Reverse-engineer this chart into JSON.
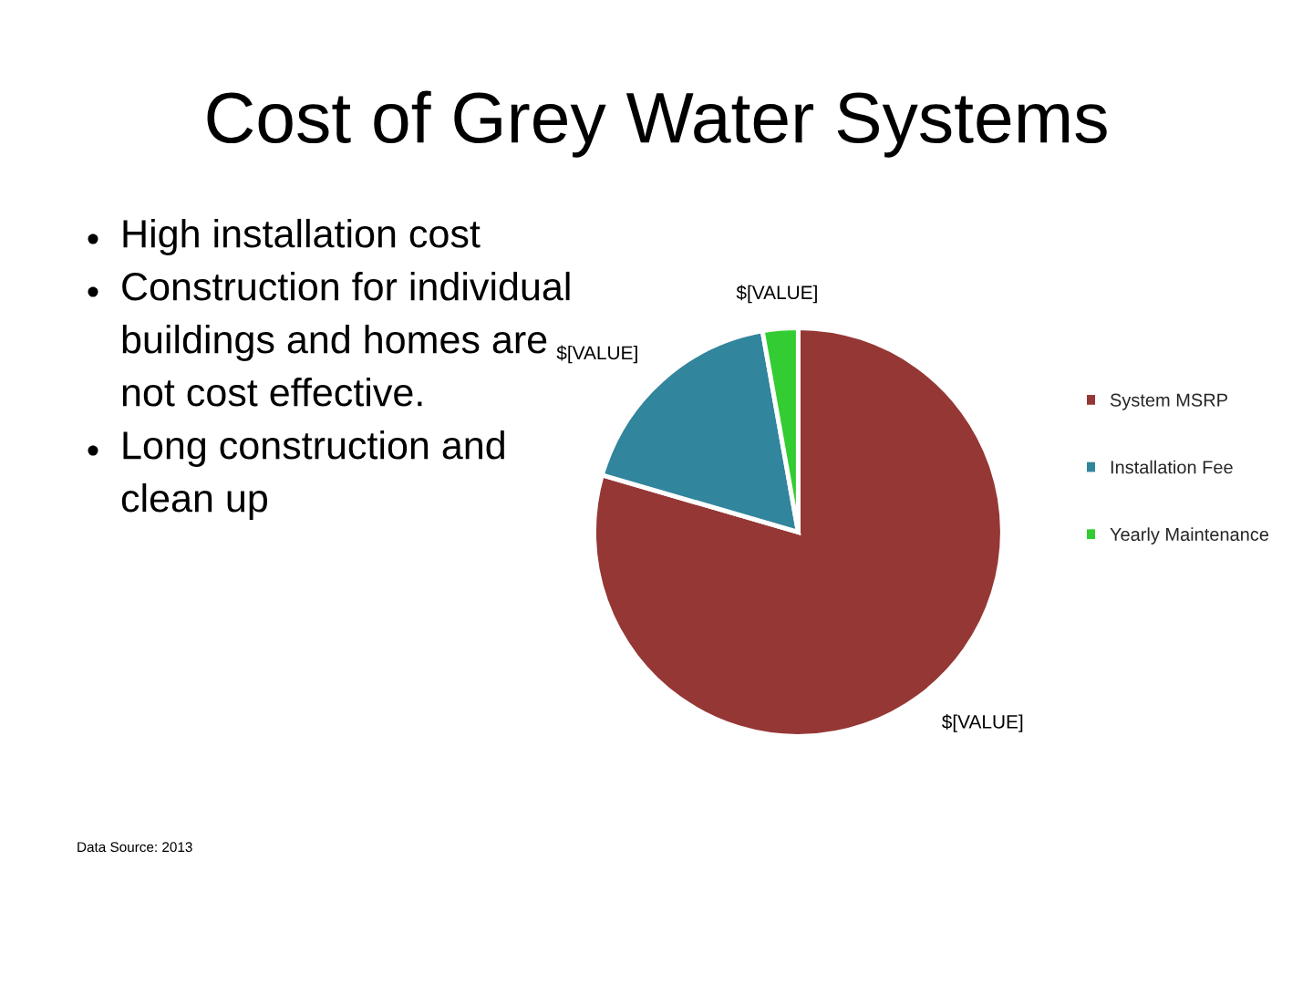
{
  "chart_data": {
    "type": "pie",
    "title": "Cost of Grey Water Systems",
    "categories": [
      "System MSRP",
      "Installation Fee",
      "Yearly Maintenance"
    ],
    "values": [
      79.5,
      17.7,
      2.8
    ],
    "colors": [
      "#953735",
      "#31859c",
      "#33cc33"
    ],
    "value_labels": [
      "$[VALUE]",
      "$[VALUE]",
      "$[VALUE]"
    ],
    "legend": "right",
    "annotations": [
      "High installation cost",
      "Construction for individual\nbuildings and homes are\nnot cost effective.",
      "Long construction and\nclean up",
      "Data Source: 2013"
    ]
  }
}
